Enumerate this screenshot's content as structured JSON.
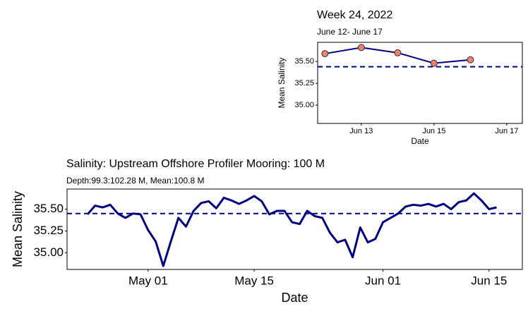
{
  "chart_data": [
    {
      "type": "line",
      "title": "Week 24, 2022",
      "subtitle": "June 12- June 17",
      "x_label": "Date",
      "y_label": "Mean Salinity",
      "x": [
        12,
        13,
        14,
        15,
        16
      ],
      "series": [
        {
          "name": "Mean Salinity",
          "color": "#000080",
          "marker_color": "#f08070",
          "values": [
            35.59,
            35.66,
            35.6,
            35.48,
            35.52
          ]
        }
      ],
      "hline": 35.44,
      "hline_color": "#000080",
      "xlim": [
        11.8,
        17.43
      ],
      "ylim": [
        34.79,
        35.72
      ],
      "xticks": [
        {
          "value": 13,
          "label": "Jun 13"
        },
        {
          "value": 15,
          "label": "Jun 15"
        },
        {
          "value": 17,
          "label": "Jun 17"
        }
      ],
      "yticks": [
        {
          "value": 35.0,
          "label": "35.00"
        },
        {
          "value": 35.25,
          "label": "35.25"
        },
        {
          "value": 35.5,
          "label": "35.50"
        }
      ],
      "markers": true
    },
    {
      "type": "line",
      "title": "Salinity: Upstream Offshore Profiler Mooring: 100 M",
      "subtitle": "Depth:99.3:102.28 M, Mean:100.8 M",
      "x_label": "Date",
      "y_label": "Mean Salinity",
      "x": [
        113,
        114,
        115,
        116,
        117,
        118,
        119,
        120,
        121,
        122,
        123,
        124,
        125,
        126,
        127,
        128,
        129,
        130,
        131,
        132,
        133,
        134,
        135,
        136,
        137,
        138,
        139,
        140,
        141,
        142,
        143,
        144,
        145,
        146,
        147,
        148,
        149,
        150,
        151,
        152,
        153,
        154,
        155,
        156,
        157,
        158,
        159,
        160,
        161,
        162,
        163,
        164,
        165,
        166,
        167
      ],
      "series": [
        {
          "name": "Mean Salinity",
          "color": "#000080",
          "values": [
            35.44,
            35.54,
            35.52,
            35.55,
            35.45,
            35.4,
            35.45,
            35.44,
            35.26,
            35.13,
            34.85,
            35.13,
            35.4,
            35.3,
            35.48,
            35.57,
            35.59,
            35.51,
            35.63,
            35.6,
            35.56,
            35.6,
            35.65,
            35.59,
            35.44,
            35.48,
            35.48,
            35.35,
            35.33,
            35.48,
            35.42,
            35.4,
            35.23,
            35.12,
            35.15,
            34.95,
            35.29,
            35.12,
            35.16,
            35.35,
            35.4,
            35.45,
            35.53,
            35.55,
            35.54,
            35.56,
            35.53,
            35.56,
            35.5,
            35.58,
            35.6,
            35.68,
            35.6,
            35.5,
            35.52
          ]
        }
      ],
      "hline": 35.45,
      "hline_color": "#000080",
      "xlim": [
        110.3,
        170.4
      ],
      "ylim": [
        34.81,
        35.73
      ],
      "xticks": [
        {
          "value": 121,
          "label": "May 01"
        },
        {
          "value": 135,
          "label": "May 15"
        },
        {
          "value": 152,
          "label": "Jun 01"
        },
        {
          "value": 166,
          "label": "Jun 15"
        }
      ],
      "yticks": [
        {
          "value": 35.0,
          "label": "35.00"
        },
        {
          "value": 35.25,
          "label": "35.25"
        },
        {
          "value": 35.5,
          "label": "35.50"
        }
      ],
      "markers": false
    }
  ]
}
